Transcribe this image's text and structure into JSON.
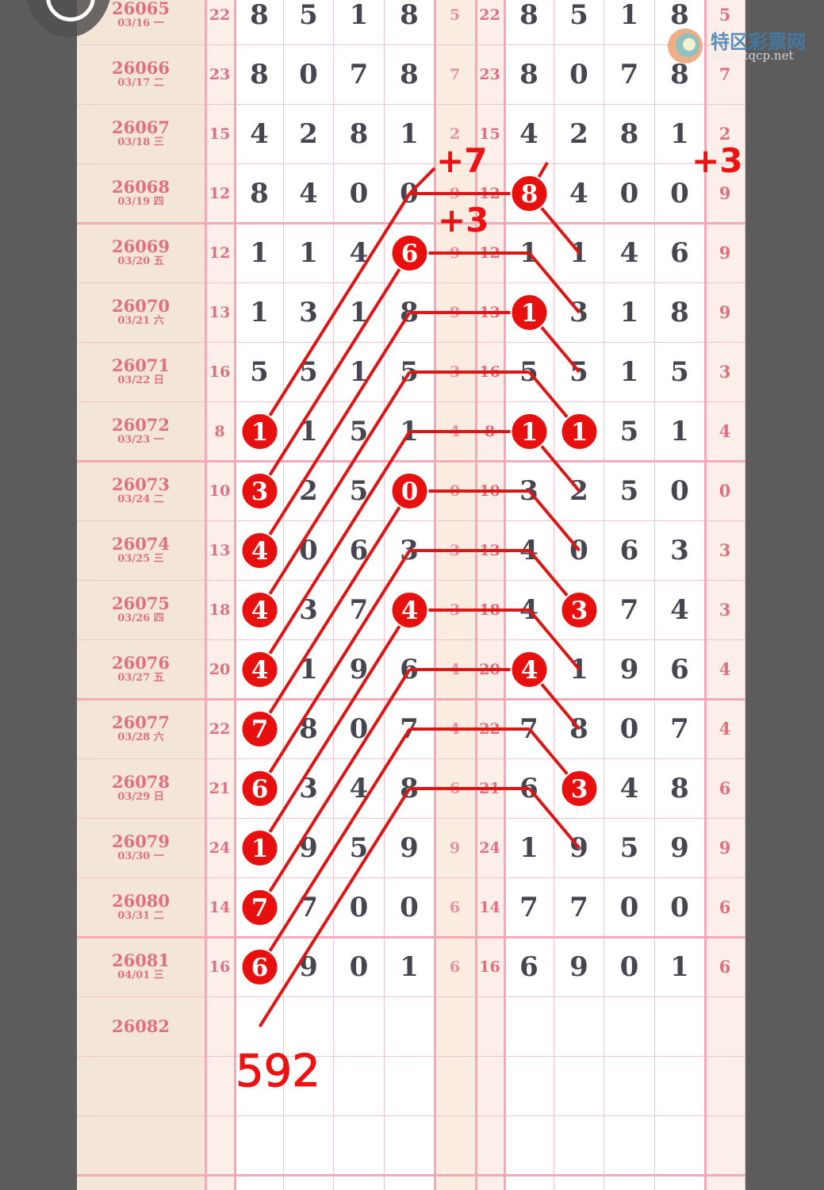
{
  "logo": {
    "name": "特区彩票网",
    "url_text": "www.tqcp.net"
  },
  "colors": {
    "accent": "#ee1111",
    "pink_text": "#e0707f",
    "issue_bg": "#f3e5d7",
    "digit_text": "#464650",
    "border": "#f3a9b8"
  },
  "chart_data": {
    "type": "table",
    "columns": [
      "issue",
      "date",
      "sum",
      "d1",
      "d2",
      "d3",
      "d4",
      "span",
      "sum2",
      "e1",
      "e2",
      "e3",
      "e4",
      "last"
    ],
    "rows": [
      {
        "issue": "26065",
        "date": "03/16 一",
        "sum": "22",
        "digits": [
          "8",
          "5",
          "1",
          "8"
        ],
        "mid": "5",
        "sum2": "22",
        "digits2": [
          "8",
          "5",
          "1",
          "8"
        ],
        "last": "5"
      },
      {
        "issue": "26066",
        "date": "03/17 二",
        "sum": "23",
        "digits": [
          "8",
          "0",
          "7",
          "8"
        ],
        "mid": "7",
        "sum2": "23",
        "digits2": [
          "8",
          "0",
          "7",
          "8"
        ],
        "last": "7"
      },
      {
        "issue": "26067",
        "date": "03/18 三",
        "sum": "15",
        "digits": [
          "4",
          "2",
          "8",
          "1"
        ],
        "mid": "2",
        "sum2": "15",
        "digits2": [
          "4",
          "2",
          "8",
          "1"
        ],
        "last": "2"
      },
      {
        "issue": "26068",
        "date": "03/19 四",
        "sum": "12",
        "digits": [
          "8",
          "4",
          "0",
          "0"
        ],
        "mid": "9",
        "sum2": "12",
        "digits2": [
          "8",
          "4",
          "0",
          "0"
        ],
        "last": "9"
      },
      {
        "issue": "26069",
        "date": "03/20 五",
        "sum": "12",
        "digits": [
          "1",
          "1",
          "4",
          "6"
        ],
        "mid": "9",
        "sum2": "12",
        "digits2": [
          "1",
          "1",
          "4",
          "6"
        ],
        "last": "9"
      },
      {
        "issue": "26070",
        "date": "03/21 六",
        "sum": "13",
        "digits": [
          "1",
          "3",
          "1",
          "8"
        ],
        "mid": "9",
        "sum2": "13",
        "digits2": [
          "1",
          "3",
          "1",
          "8"
        ],
        "last": "9"
      },
      {
        "issue": "26071",
        "date": "03/22 日",
        "sum": "16",
        "digits": [
          "5",
          "5",
          "1",
          "5"
        ],
        "mid": "3",
        "sum2": "16",
        "digits2": [
          "5",
          "5",
          "1",
          "5"
        ],
        "last": "3"
      },
      {
        "issue": "26072",
        "date": "03/23 一",
        "sum": "8",
        "digits": [
          "1",
          "1",
          "5",
          "1"
        ],
        "mid": "4",
        "sum2": "8",
        "digits2": [
          "1",
          "1",
          "5",
          "1"
        ],
        "last": "4"
      },
      {
        "issue": "26073",
        "date": "03/24 二",
        "sum": "10",
        "digits": [
          "3",
          "2",
          "5",
          "0"
        ],
        "mid": "0",
        "sum2": "10",
        "digits2": [
          "3",
          "2",
          "5",
          "0"
        ],
        "last": "0"
      },
      {
        "issue": "26074",
        "date": "03/25 三",
        "sum": "13",
        "digits": [
          "4",
          "0",
          "6",
          "3"
        ],
        "mid": "3",
        "sum2": "13",
        "digits2": [
          "4",
          "0",
          "6",
          "3"
        ],
        "last": "3"
      },
      {
        "issue": "26075",
        "date": "03/26 四",
        "sum": "18",
        "digits": [
          "4",
          "3",
          "7",
          "4"
        ],
        "mid": "3",
        "sum2": "18",
        "digits2": [
          "4",
          "3",
          "7",
          "4"
        ],
        "last": "3"
      },
      {
        "issue": "26076",
        "date": "03/27 五",
        "sum": "20",
        "digits": [
          "4",
          "1",
          "9",
          "6"
        ],
        "mid": "4",
        "sum2": "20",
        "digits2": [
          "4",
          "1",
          "9",
          "6"
        ],
        "last": "4"
      },
      {
        "issue": "26077",
        "date": "03/28 六",
        "sum": "22",
        "digits": [
          "7",
          "8",
          "0",
          "7"
        ],
        "mid": "4",
        "sum2": "22",
        "digits2": [
          "7",
          "8",
          "0",
          "7"
        ],
        "last": "4"
      },
      {
        "issue": "26078",
        "date": "03/29 日",
        "sum": "21",
        "digits": [
          "6",
          "3",
          "4",
          "8"
        ],
        "mid": "6",
        "sum2": "21",
        "digits2": [
          "6",
          "3",
          "4",
          "8"
        ],
        "last": "6"
      },
      {
        "issue": "26079",
        "date": "03/30 一",
        "sum": "24",
        "digits": [
          "1",
          "9",
          "5",
          "9"
        ],
        "mid": "9",
        "sum2": "24",
        "digits2": [
          "1",
          "9",
          "5",
          "9"
        ],
        "last": "9"
      },
      {
        "issue": "26080",
        "date": "03/31 二",
        "sum": "14",
        "digits": [
          "7",
          "7",
          "0",
          "0"
        ],
        "mid": "6",
        "sum2": "14",
        "digits2": [
          "7",
          "7",
          "0",
          "0"
        ],
        "last": "6"
      },
      {
        "issue": "26081",
        "date": "04/01 三",
        "sum": "16",
        "digits": [
          "6",
          "9",
          "0",
          "1"
        ],
        "mid": "6",
        "sum2": "16",
        "digits2": [
          "6",
          "9",
          "0",
          "1"
        ],
        "last": "6"
      },
      {
        "issue": "26082",
        "date": "",
        "sum": "",
        "digits": [
          "",
          "",
          "",
          ""
        ],
        "mid": "",
        "sum2": "",
        "digits2": [
          "",
          "",
          "",
          ""
        ],
        "last": ""
      }
    ],
    "circled": [
      {
        "issue": "26072",
        "col": "d1"
      },
      {
        "issue": "26073",
        "col": "d1"
      },
      {
        "issue": "26074",
        "col": "d1"
      },
      {
        "issue": "26075",
        "col": "d1"
      },
      {
        "issue": "26076",
        "col": "d1"
      },
      {
        "issue": "26077",
        "col": "d1"
      },
      {
        "issue": "26078",
        "col": "d1"
      },
      {
        "issue": "26079",
        "col": "d1"
      },
      {
        "issue": "26080",
        "col": "d1"
      },
      {
        "issue": "26081",
        "col": "d1"
      },
      {
        "issue": "26069",
        "col": "d4"
      },
      {
        "issue": "26073",
        "col": "d4"
      },
      {
        "issue": "26075",
        "col": "d4"
      },
      {
        "issue": "26068",
        "col": "e1"
      },
      {
        "issue": "26070",
        "col": "e1"
      },
      {
        "issue": "26072",
        "col": "e1"
      },
      {
        "issue": "26076",
        "col": "e1"
      },
      {
        "issue": "26072",
        "col": "e2"
      },
      {
        "issue": "26075",
        "col": "e2"
      },
      {
        "issue": "26078",
        "col": "e2"
      }
    ],
    "link_rows": [
      "26068",
      "26069",
      "26070",
      "26071",
      "26072",
      "26073",
      "26074",
      "26075",
      "26076",
      "26077",
      "26078"
    ],
    "annotations": {
      "plus7": "+7",
      "plus3_a": "+3",
      "plus3_b": "+3",
      "prediction": "592"
    }
  }
}
